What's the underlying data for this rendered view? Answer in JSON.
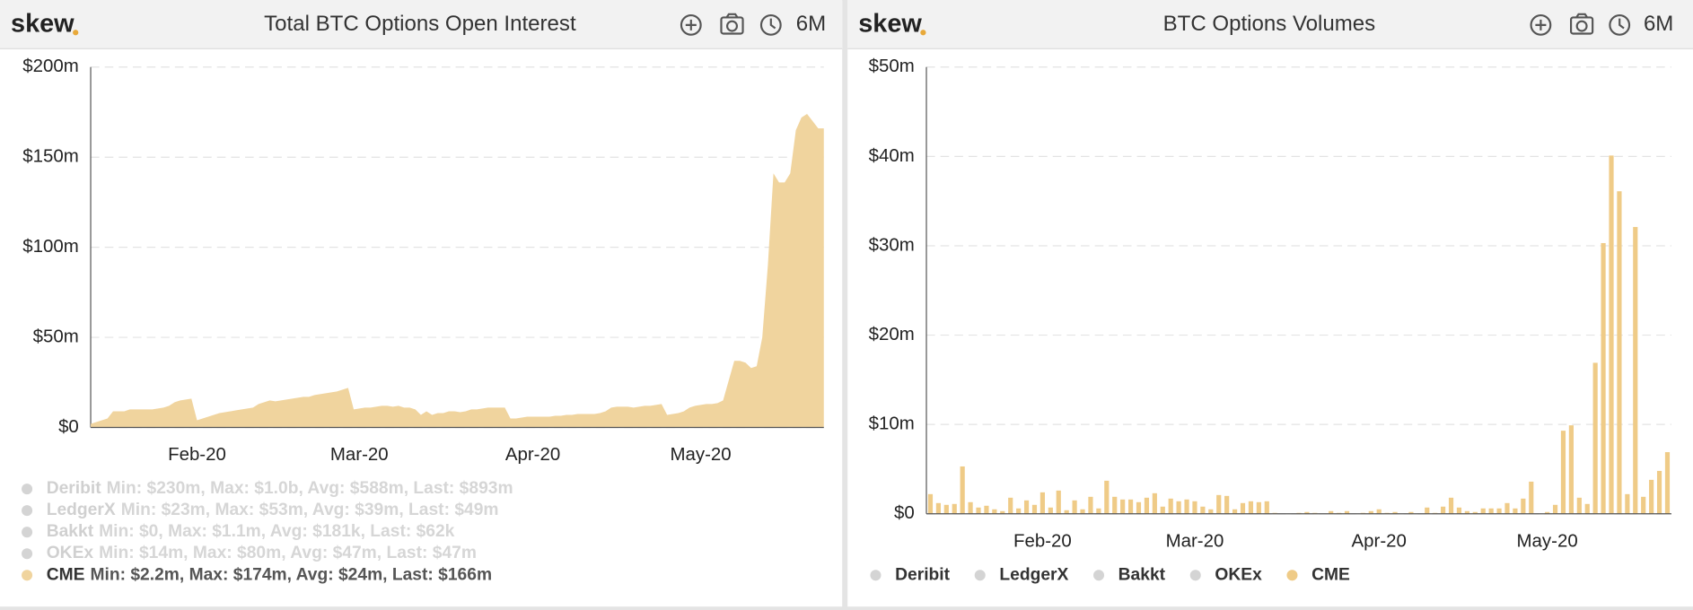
{
  "chart_data": [
    {
      "type": "area",
      "brand": "skew",
      "title": "Total BTC Options Open Interest",
      "range_button": "6M",
      "categories": [
        null,
        null,
        null,
        null,
        null,
        null,
        null,
        null,
        null,
        null,
        null,
        null,
        null,
        null,
        null,
        null,
        null,
        null,
        null,
        "Feb-20",
        null,
        null,
        null,
        null,
        null,
        null,
        null,
        null,
        null,
        null,
        null,
        null,
        null,
        null,
        null,
        null,
        null,
        null,
        null,
        null,
        null,
        null,
        null,
        null,
        null,
        null,
        null,
        null,
        "Mar-20",
        null,
        null,
        null,
        null,
        null,
        null,
        null,
        null,
        null,
        null,
        null,
        null,
        null,
        null,
        null,
        null,
        null,
        null,
        null,
        null,
        null,
        null,
        null,
        null,
        null,
        null,
        null,
        null,
        null,
        null,
        "Apr-20",
        null,
        null,
        null,
        null,
        null,
        null,
        null,
        null,
        null,
        null,
        null,
        null,
        null,
        null,
        null,
        null,
        null,
        null,
        null,
        null,
        null,
        null,
        null,
        null,
        null,
        null,
        null,
        null,
        null,
        "May-20",
        null,
        null,
        null,
        null,
        null,
        null,
        null,
        null,
        null,
        null,
        null,
        null,
        null,
        null,
        null,
        null,
        null,
        null,
        null,
        null,
        null,
        null
      ],
      "series": [
        {
          "name": "Deribit",
          "color": "#d4d4d4",
          "visible": false,
          "stats": "Min: $230m, Max: $1.0b, Avg: $588m, Last: $893m"
        },
        {
          "name": "LedgerX",
          "color": "#d4d4d4",
          "visible": false,
          "stats": "Min: $23m, Max: $53m, Avg: $39m, Last: $49m"
        },
        {
          "name": "Bakkt",
          "color": "#d4d4d4",
          "visible": false,
          "stats": "Min: $0, Max: $1.1m, Avg: $181k, Last: $62k"
        },
        {
          "name": "OKEx",
          "color": "#d4d4d4",
          "visible": false,
          "stats": "Min: $14m, Max: $80m, Avg: $47m, Last: $47m"
        },
        {
          "name": "CME",
          "color": "#f0d49e",
          "visible": true,
          "stats": "Min: $2.2m, Max: $174m, Avg: $24m, Last: $166m",
          "values": [
            2,
            3,
            4,
            5,
            9,
            9,
            9,
            10,
            10,
            10,
            10,
            10,
            10.5,
            11,
            12,
            14,
            15,
            15.5,
            16,
            4,
            5,
            6,
            7,
            8,
            8.5,
            9,
            9.5,
            10,
            10.5,
            11,
            13,
            14,
            15,
            14.5,
            15,
            15.5,
            16,
            16.5,
            17,
            17,
            18,
            18.5,
            19,
            19.5,
            20,
            21,
            22,
            10,
            10.5,
            11,
            11,
            11.5,
            12,
            12,
            11.5,
            12,
            11,
            11,
            10,
            7,
            9,
            7,
            8,
            8,
            9,
            9,
            8.5,
            9,
            10,
            10,
            10.5,
            11,
            11,
            11,
            11,
            5,
            5,
            5.5,
            6,
            6,
            6,
            6,
            6,
            6.5,
            6.5,
            7,
            7,
            7.5,
            7.5,
            7.5,
            7.5,
            8,
            9,
            11,
            11.5,
            11.5,
            11.5,
            11,
            11.5,
            12,
            12,
            12.5,
            13,
            7,
            7.5,
            8,
            9,
            11,
            12,
            12.5,
            13,
            13,
            13.5,
            15,
            26,
            37,
            37,
            36,
            33,
            34,
            50,
            90,
            141,
            136,
            136,
            141,
            165,
            172,
            174,
            170,
            166,
            166
          ]
        }
      ],
      "ylim": [
        0,
        200
      ],
      "yticks": [
        {
          "value": 0,
          "label": "$0"
        },
        {
          "value": 50,
          "label": "$50m"
        },
        {
          "value": 100,
          "label": "$100m"
        },
        {
          "value": 150,
          "label": "$150m"
        },
        {
          "value": 200,
          "label": "$200m"
        }
      ],
      "grid": true
    },
    {
      "type": "bar",
      "brand": "skew",
      "title": "BTC Options Volumes",
      "range_button": "6M",
      "categories": [
        null,
        null,
        null,
        null,
        null,
        null,
        null,
        null,
        null,
        null,
        null,
        null,
        null,
        null,
        "Feb-20",
        null,
        null,
        null,
        null,
        null,
        null,
        null,
        null,
        null,
        null,
        null,
        null,
        null,
        null,
        null,
        null,
        null,
        null,
        "Mar-20",
        null,
        null,
        null,
        null,
        null,
        null,
        null,
        null,
        null,
        null,
        null,
        null,
        null,
        null,
        null,
        null,
        null,
        null,
        null,
        null,
        null,
        null,
        "Apr-20",
        null,
        null,
        null,
        null,
        null,
        null,
        null,
        null,
        null,
        null,
        null,
        null,
        null,
        null,
        null,
        null,
        null,
        null,
        null,
        null,
        "May-20",
        null,
        null,
        null,
        null,
        null,
        null,
        null,
        null,
        null,
        null,
        null,
        null,
        null,
        null,
        null
      ],
      "series": [
        {
          "name": "Deribit",
          "color": "#d4d4d4",
          "visible": false
        },
        {
          "name": "LedgerX",
          "color": "#d4d4d4",
          "visible": false
        },
        {
          "name": "Bakkt",
          "color": "#d4d4d4",
          "visible": false
        },
        {
          "name": "OKEx",
          "color": "#d4d4d4",
          "visible": false
        },
        {
          "name": "CME",
          "color": "#efcb87",
          "visible": true,
          "values": [
            2.2,
            1.2,
            1.0,
            1.1,
            5.3,
            1.3,
            0.7,
            0.9,
            0.5,
            0.3,
            1.8,
            0.6,
            1.5,
            1.0,
            2.4,
            0.7,
            2.6,
            0.4,
            1.5,
            0.5,
            1.9,
            0.6,
            3.7,
            1.9,
            1.6,
            1.6,
            1.3,
            1.8,
            2.3,
            0.8,
            1.7,
            1.4,
            1.6,
            1.4,
            0.8,
            0.5,
            2.1,
            2.0,
            0.5,
            1.2,
            1.4,
            1.3,
            1.4,
            0.1,
            0,
            0,
            0.1,
            0.2,
            0.1,
            0,
            0.3,
            0.1,
            0.3,
            0,
            0.1,
            0.3,
            0.5,
            0.1,
            0.2,
            0,
            0.2,
            0,
            0.7,
            0.1,
            0.8,
            1.8,
            0.7,
            0.3,
            0.2,
            0.6,
            0.6,
            0.6,
            1.2,
            0.6,
            1.7,
            3.6,
            0,
            0.2,
            1.0,
            9.3,
            9.9,
            1.8,
            1.1,
            16.9,
            30.3,
            40.1,
            36.1,
            2.2,
            32.1,
            1.9,
            3.8,
            4.8,
            6.9
          ]
        }
      ],
      "ylim": [
        0,
        50
      ],
      "yticks": [
        {
          "value": 0,
          "label": "$0"
        },
        {
          "value": 10,
          "label": "$10m"
        },
        {
          "value": 20,
          "label": "$20m"
        },
        {
          "value": 30,
          "label": "$30m"
        },
        {
          "value": 40,
          "label": "$40m"
        },
        {
          "value": 50,
          "label": "$50m"
        }
      ],
      "grid": true
    }
  ]
}
